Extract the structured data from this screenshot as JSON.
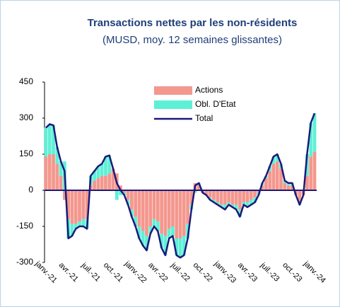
{
  "chart_data": {
    "type": "bar_line",
    "title": "Transactions nettes par les non-résidents",
    "subtitle": "(MUSD, moy. 12 semaines glissantes)",
    "categories": [
      "janv.-21",
      null,
      null,
      null,
      null,
      null,
      "avr.-21",
      null,
      null,
      null,
      null,
      null,
      "juil.-21",
      null,
      null,
      null,
      null,
      null,
      "oct.-21",
      null,
      null,
      null,
      null,
      null,
      "janv.-22",
      null,
      null,
      null,
      null,
      null,
      "avr.-22",
      null,
      null,
      null,
      null,
      null,
      "juil.-22",
      null,
      null,
      null,
      null,
      null,
      "oct.-22",
      null,
      null,
      null,
      null,
      null,
      "janv.-23",
      null,
      null,
      null,
      null,
      null,
      "avr.-23",
      null,
      null,
      null,
      null,
      null,
      "juil.-23",
      null,
      null,
      null,
      null,
      null,
      "oct.-23",
      null,
      null,
      null,
      null,
      null,
      "janv.-24"
    ],
    "series": [
      {
        "name": "Actions",
        "color": "#f4978e",
        "kind": "bar",
        "values": [
          140,
          150,
          150,
          110,
          60,
          -40,
          -120,
          -140,
          -140,
          -130,
          -120,
          -120,
          20,
          40,
          50,
          60,
          60,
          70,
          90,
          70,
          20,
          -10,
          -40,
          -80,
          -110,
          -150,
          -170,
          -190,
          -150,
          -120,
          -130,
          -180,
          -190,
          -160,
          -150,
          -200,
          -200,
          -190,
          -140,
          -60,
          30,
          20,
          -10,
          -20,
          -30,
          -40,
          -50,
          -60,
          -60,
          -50,
          -60,
          -60,
          -80,
          -50,
          -50,
          -40,
          -30,
          -10,
          20,
          50,
          80,
          110,
          120,
          90,
          30,
          20,
          20,
          -20,
          -50,
          -20,
          60,
          140,
          160
        ]
      },
      {
        "name": "Obl. D'Etat",
        "color": "#5ef0d6",
        "kind": "bar",
        "values": [
          120,
          125,
          120,
          70,
          60,
          120,
          -80,
          -50,
          -20,
          -20,
          -30,
          -40,
          40,
          40,
          50,
          50,
          80,
          75,
          0,
          -40,
          -20,
          -10,
          -20,
          -30,
          -40,
          -50,
          -60,
          -60,
          -30,
          -30,
          -40,
          -60,
          -80,
          -40,
          -40,
          -70,
          -80,
          -80,
          -60,
          -20,
          -10,
          10,
          0,
          0,
          -10,
          -10,
          -10,
          -10,
          -20,
          -10,
          -10,
          -20,
          -30,
          -10,
          -20,
          -20,
          -20,
          -10,
          10,
          10,
          20,
          30,
          30,
          20,
          10,
          10,
          10,
          0,
          -10,
          0,
          90,
          140,
          160
        ]
      },
      {
        "name": "Total",
        "color": "#1a1a7a",
        "kind": "line",
        "values": [
          260,
          275,
          270,
          180,
          120,
          80,
          -200,
          -190,
          -160,
          -150,
          -150,
          -160,
          60,
          80,
          100,
          110,
          140,
          145,
          90,
          30,
          0,
          -20,
          -60,
          -110,
          -150,
          -200,
          -230,
          -250,
          -180,
          -150,
          -170,
          -240,
          -270,
          -200,
          -190,
          -270,
          -280,
          -270,
          -200,
          -80,
          20,
          30,
          -10,
          -20,
          -40,
          -50,
          -60,
          -70,
          -80,
          -60,
          -70,
          -80,
          -110,
          -60,
          -70,
          -60,
          -50,
          -20,
          30,
          60,
          100,
          140,
          150,
          110,
          40,
          30,
          30,
          -20,
          -60,
          -20,
          150,
          280,
          320
        ]
      }
    ],
    "ylim": [
      -300,
      450
    ],
    "yticks": [
      450,
      300,
      150,
      0,
      -150,
      -300
    ]
  }
}
